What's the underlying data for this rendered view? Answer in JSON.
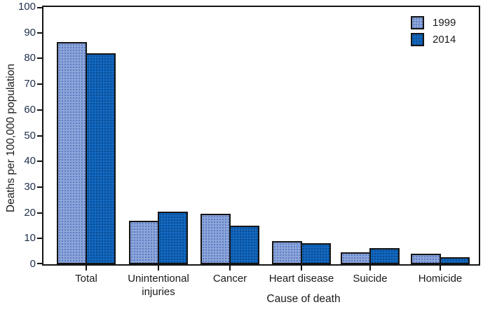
{
  "chart_data": {
    "type": "bar",
    "title": "",
    "xlabel": "Cause of death",
    "ylabel": "Deaths per 100,000 population",
    "categories": [
      "Total",
      "Unintentional injuries",
      "Cancer",
      "Heart disease",
      "Suicide",
      "Homicide"
    ],
    "series": [
      {
        "name": "1999",
        "color": "#8ea6d9",
        "dot_color": "#5c7dc5",
        "values": [
          86.5,
          17.0,
          19.5,
          8.9,
          4.6,
          4.2
        ]
      },
      {
        "name": "2014",
        "color": "#1268c0",
        "dot_color": "#0a4a8d",
        "values": [
          82.0,
          20.3,
          15.0,
          8.3,
          6.2,
          2.7
        ]
      }
    ],
    "ylim": [
      0,
      100
    ],
    "ytick_step": 10,
    "yticks": [
      0,
      10,
      20,
      30,
      40,
      50,
      60,
      70,
      80,
      90,
      100
    ],
    "grid": false,
    "legend_position": "top-right",
    "spine_box": true,
    "axis_color": "#141414"
  }
}
